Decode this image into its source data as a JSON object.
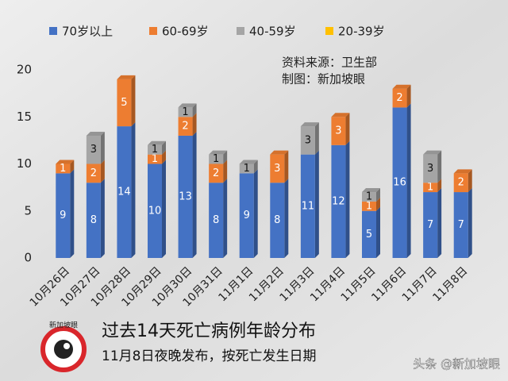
{
  "chart_data": {
    "type": "bar",
    "stacked": true,
    "categories": [
      "10月26日",
      "10月27日",
      "10月28日",
      "10月29日",
      "10月30日",
      "10月31日",
      "11月1日",
      "11月2日",
      "11月3日",
      "11月4日",
      "11月5日",
      "11月6日",
      "11月7日",
      "11月8日"
    ],
    "series": [
      {
        "name": "70岁以上",
        "color": "#4472c4",
        "values": [
          9,
          8,
          14,
          10,
          13,
          8,
          9,
          8,
          11,
          12,
          5,
          16,
          7,
          7
        ]
      },
      {
        "name": "60-69岁",
        "color": "#ed7d31",
        "values": [
          1,
          2,
          5,
          1,
          2,
          2,
          0,
          3,
          0,
          3,
          1,
          2,
          1,
          2
        ]
      },
      {
        "name": "40-59岁",
        "color": "#a5a5a5",
        "values": [
          0,
          3,
          0,
          1,
          1,
          1,
          1,
          0,
          3,
          0,
          1,
          0,
          3,
          0
        ]
      },
      {
        "name": "20-39岁",
        "color": "#ffc000",
        "values": [
          0,
          0,
          0,
          0,
          0,
          0,
          0,
          0,
          0,
          0,
          0,
          0,
          0,
          0
        ]
      }
    ],
    "ylim": [
      0,
      20
    ],
    "yticks": [
      0,
      5,
      10,
      15,
      20
    ],
    "legend": "top",
    "source": "资料来源：卫生部",
    "credit": "制图：新加坡眼",
    "title": "过去14天死亡病例年龄分布",
    "subtitle": "11月8日夜晚发布，按死亡发生日期"
  },
  "logo": {
    "text": "新加坡眼"
  },
  "watermark": "头条 @新加坡眼"
}
